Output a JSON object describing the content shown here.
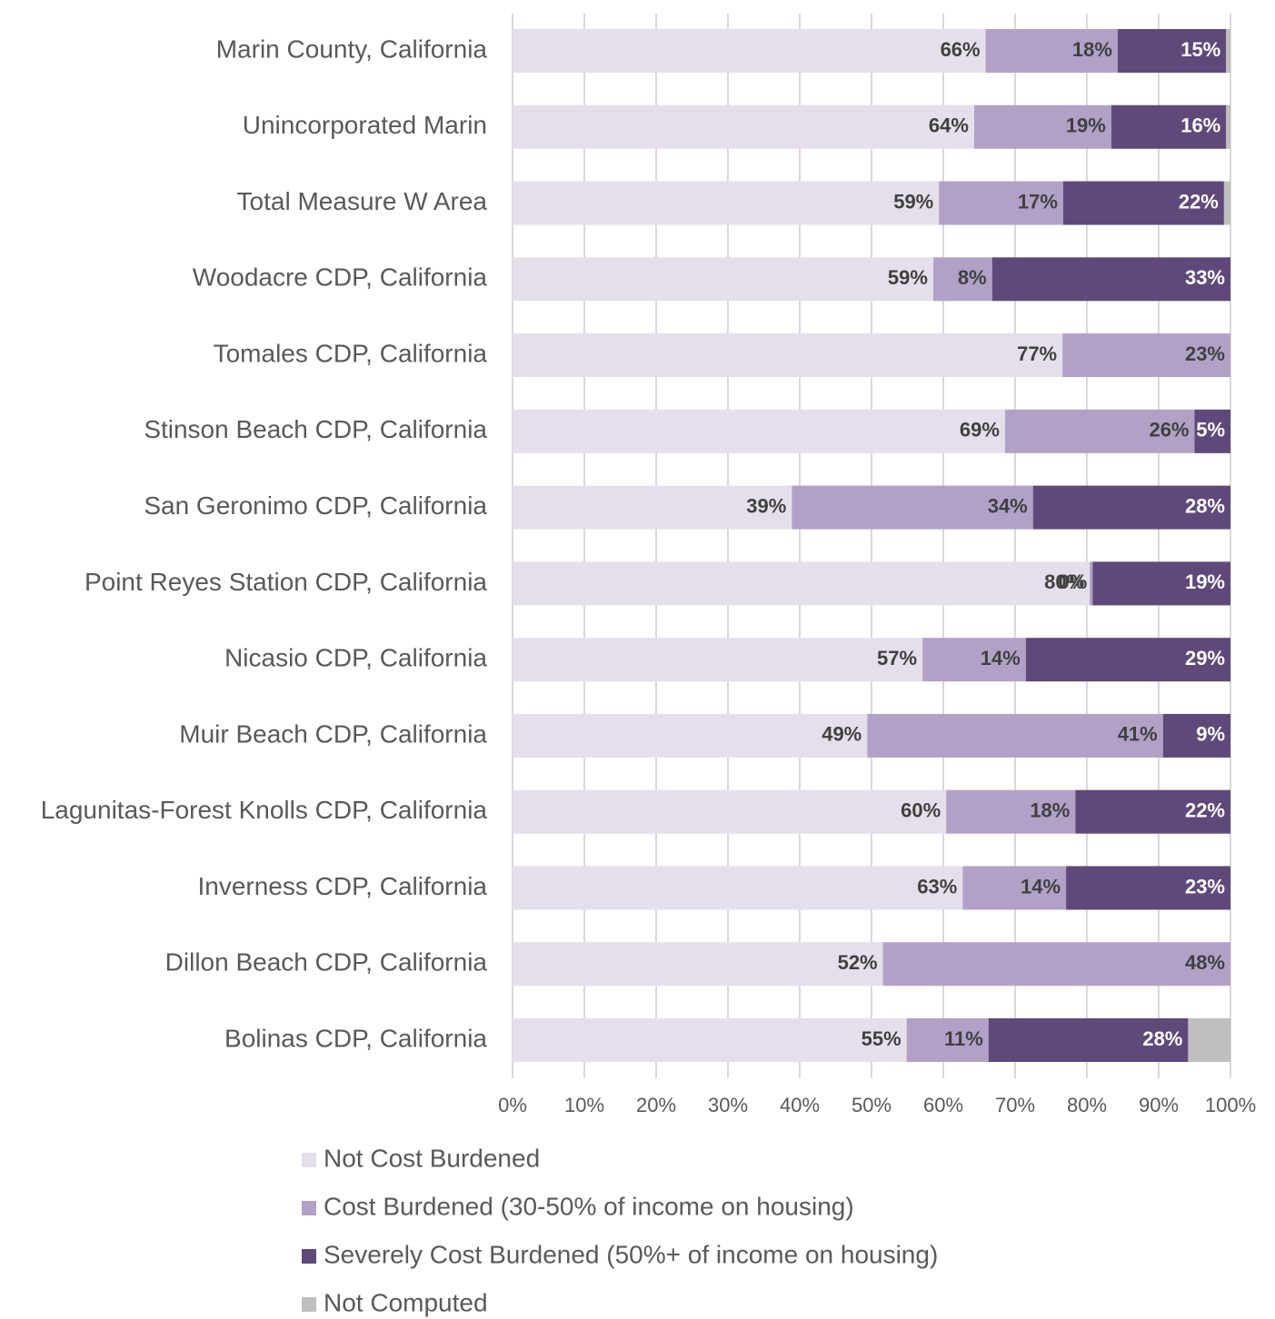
{
  "chart_data": {
    "type": "stacked_bar_horizontal",
    "categories": [
      "Marin County, California",
      "Unincorporated Marin",
      "Total Measure W Area",
      "Woodacre CDP, California",
      "Tomales CDP, California",
      "Stinson Beach CDP, California",
      "San Geronimo CDP, California",
      "Point Reyes Station CDP, California",
      "Nicasio CDP, California",
      "Muir Beach CDP, California",
      "Lagunitas-Forest Knolls CDP, California",
      "Inverness CDP, California",
      "Dillon Beach CDP, California",
      "Bolinas CDP, California"
    ],
    "series": [
      {
        "name": "Not Cost Burdened",
        "color": "#e5dfeb",
        "values": [
          65.9,
          64.3,
          59.4,
          58.6,
          76.6,
          68.6,
          38.9,
          80.4,
          57.1,
          49.4,
          60.4,
          62.7,
          51.6,
          54.9
        ],
        "value_labels": [
          "66%",
          "64%",
          "59%",
          "59%",
          "77%",
          "69%",
          "39%",
          "80%",
          "57%",
          "49%",
          "60%",
          "63%",
          "52%",
          "55%"
        ]
      },
      {
        "name": "Cost Burdened (30-50% of income on housing)",
        "color": "#b2a1c7",
        "values": [
          18.4,
          19.1,
          17.3,
          8.2,
          23.4,
          26.4,
          33.6,
          0.4,
          14.4,
          41.2,
          18.0,
          14.4,
          48.4,
          11.4
        ],
        "value_labels": [
          "18%",
          "19%",
          "17%",
          "8%",
          "23%",
          "26%",
          "34%",
          "0%",
          "14%",
          "41%",
          "18%",
          "14%",
          "48%",
          "11%"
        ]
      },
      {
        "name": "Severely Cost Burdened (50%+ of income on housing)",
        "color": "#5f497a",
        "values": [
          15.1,
          16.0,
          22.4,
          33.2,
          0,
          5.0,
          27.5,
          19.2,
          28.5,
          9.4,
          21.6,
          22.9,
          0,
          27.8
        ],
        "value_labels": [
          "15%",
          "16%",
          "22%",
          "33%",
          null,
          "5%",
          "28%",
          "19%",
          "29%",
          "9%",
          "22%",
          "23%",
          null,
          "28%"
        ]
      },
      {
        "name": "Not Computed",
        "color": "#bfbfbf",
        "values": [
          0.6,
          0.6,
          0.9,
          0,
          0,
          0,
          0,
          0,
          0,
          0,
          0,
          0,
          0,
          5.9
        ]
      }
    ],
    "xlim": [
      0,
      100
    ],
    "xticks": [
      {
        "value": 0,
        "label": "0%"
      },
      {
        "value": 10,
        "label": "10%"
      },
      {
        "value": 20,
        "label": "20%"
      },
      {
        "value": 30,
        "label": "30%"
      },
      {
        "value": 40,
        "label": "40%"
      },
      {
        "value": 50,
        "label": "50%"
      },
      {
        "value": 60,
        "label": "60%"
      },
      {
        "value": 70,
        "label": "70%"
      },
      {
        "value": 80,
        "label": "80%"
      },
      {
        "value": 90,
        "label": "90%"
      },
      {
        "value": 100,
        "label": "100%"
      }
    ],
    "grid": true,
    "legend": "bottom"
  }
}
